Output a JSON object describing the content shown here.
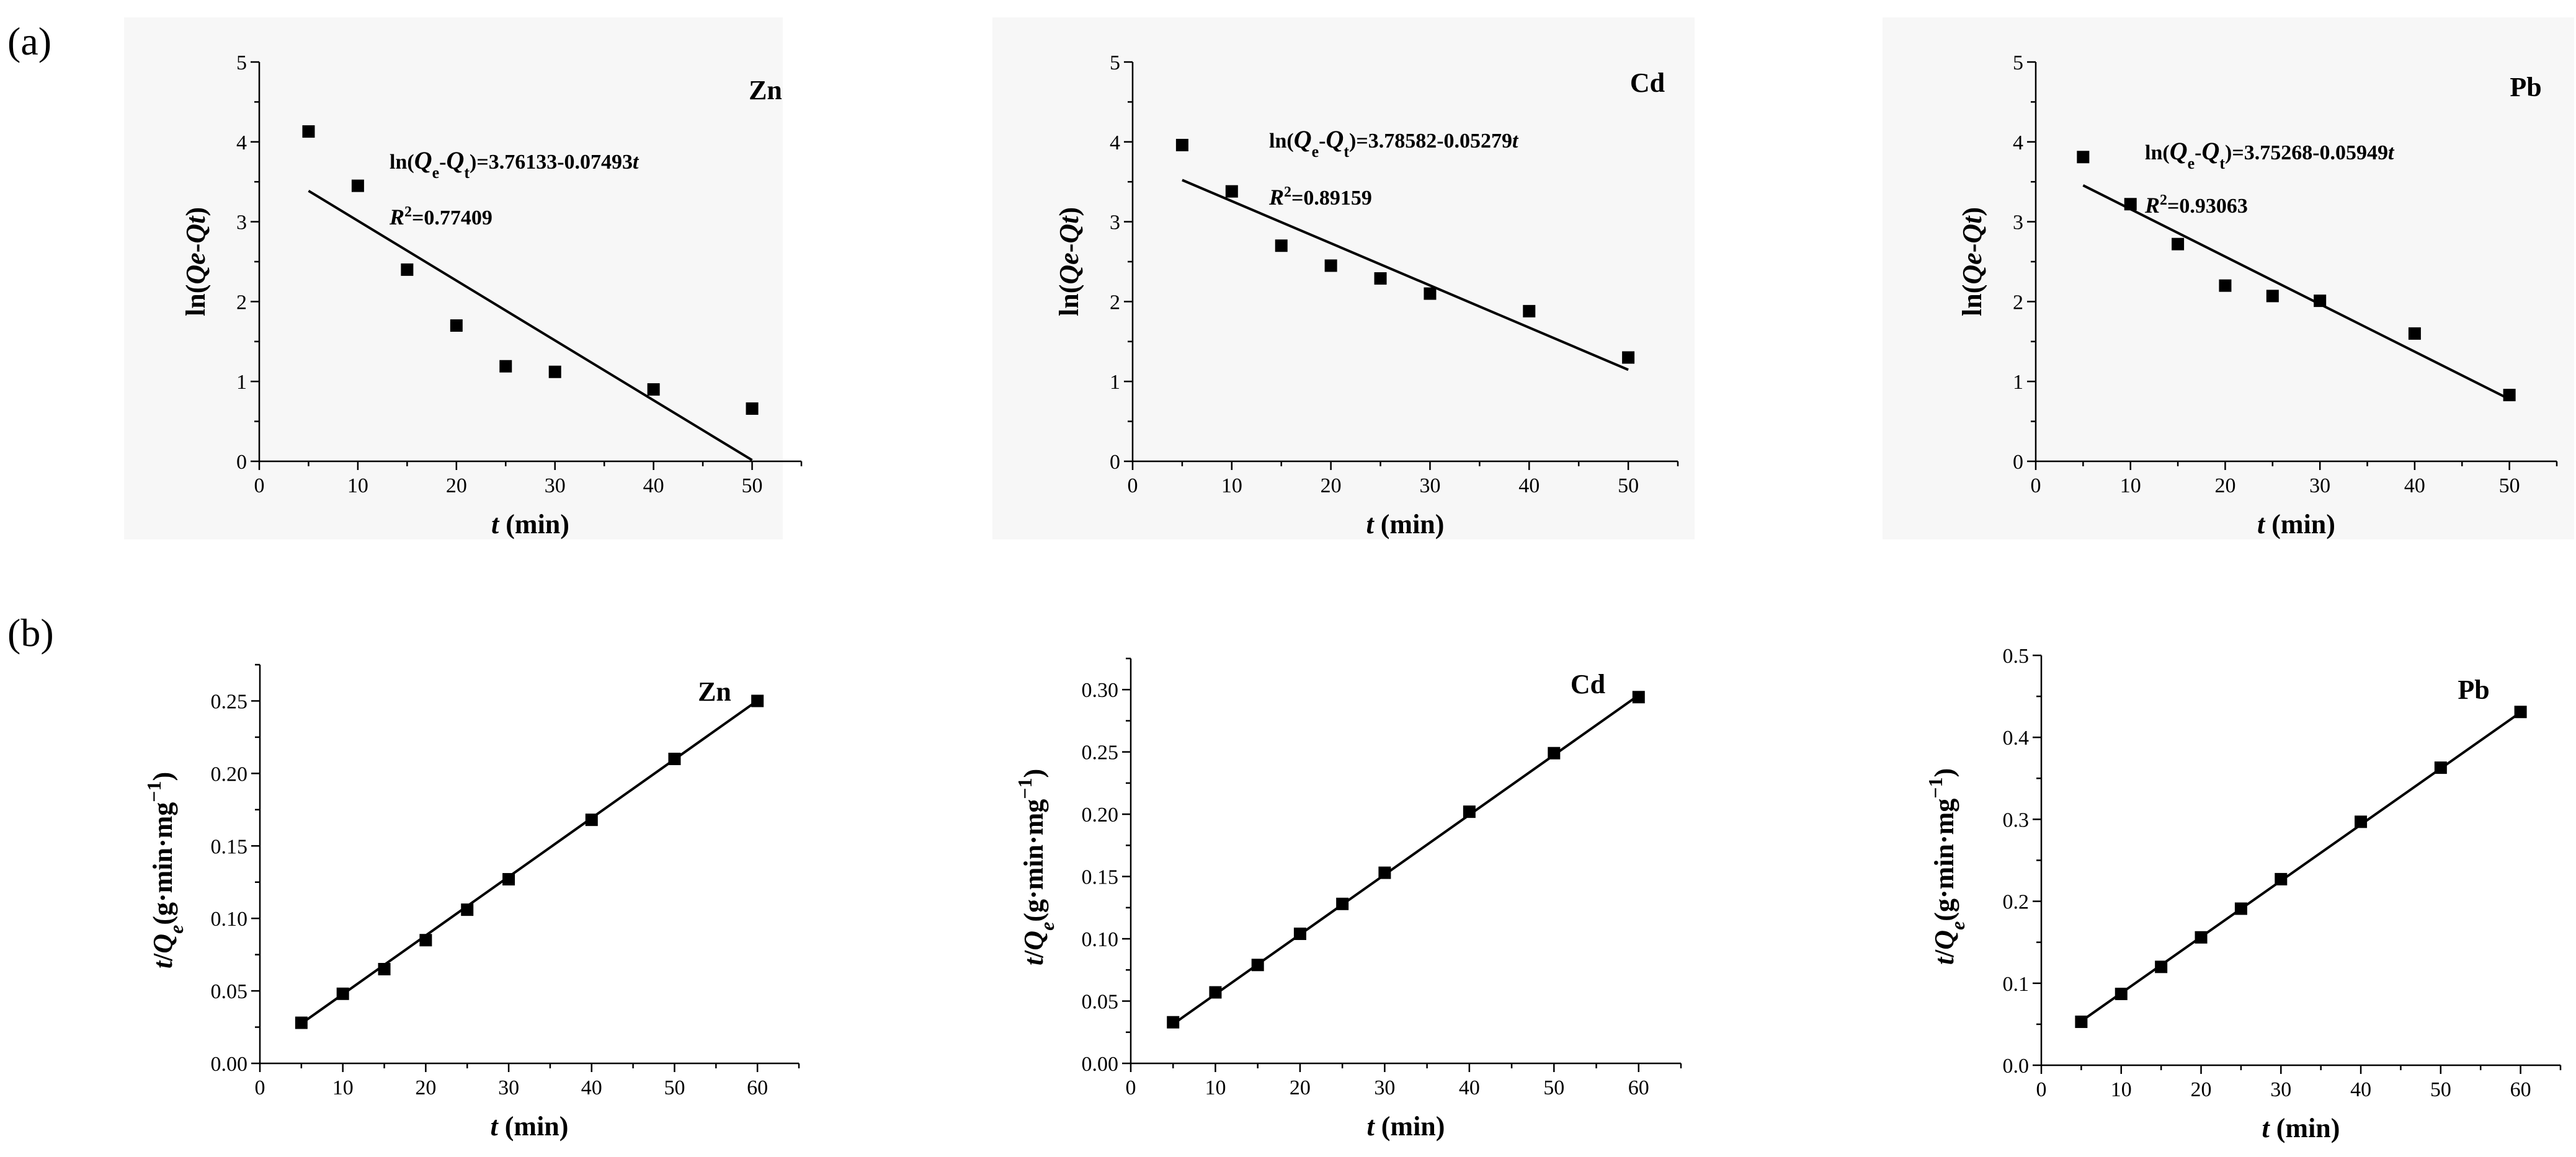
{
  "panel_labels": {
    "a": "(a)",
    "b": "(b)"
  },
  "chart_data": [
    {
      "panel": "a",
      "type": "scatter",
      "title": "Zn",
      "xlabel_italic": "t",
      "xlabel_rest": " (min)",
      "ylabel": "ln(Qe-Qt)",
      "xlim": [
        0,
        55
      ],
      "ylim": [
        0,
        5
      ],
      "xticks": [
        0,
        10,
        20,
        30,
        40,
        50
      ],
      "yticks": [
        0,
        1,
        2,
        3,
        4,
        5
      ],
      "x": [
        5,
        10,
        15,
        20,
        25,
        30,
        40,
        50
      ],
      "y": [
        4.13,
        3.45,
        2.4,
        1.7,
        1.19,
        1.12,
        0.9,
        0.66
      ],
      "fit": {
        "intercept": 3.76133,
        "slope": -0.07493,
        "x_range": [
          5,
          50
        ]
      },
      "equation": "ln(Qe-Qt)=3.76133-0.07493t",
      "r2": "R2=0.77409"
    },
    {
      "panel": "a",
      "type": "scatter",
      "title": "Cd",
      "xlabel_italic": "t",
      "xlabel_rest": " (min)",
      "ylabel": "ln(Qe-Qt)",
      "xlim": [
        0,
        55
      ],
      "ylim": [
        0,
        5
      ],
      "xticks": [
        0,
        10,
        20,
        30,
        40,
        50
      ],
      "yticks": [
        0,
        1,
        2,
        3,
        4,
        5
      ],
      "x": [
        5,
        10,
        15,
        20,
        25,
        30,
        40,
        50
      ],
      "y": [
        3.96,
        3.38,
        2.7,
        2.45,
        2.29,
        2.1,
        1.88,
        1.3
      ],
      "fit": {
        "intercept": 3.78582,
        "slope": -0.05279,
        "x_range": [
          5,
          50
        ]
      },
      "equation": "ln(Qe-Qt)=3.78582-0.05279t",
      "r2": "R2=0.89159"
    },
    {
      "panel": "a",
      "type": "scatter",
      "title": "Pb",
      "xlabel_italic": "t",
      "xlabel_rest": " (min)",
      "ylabel": "ln(Qe-Qt)",
      "xlim": [
        0,
        55
      ],
      "ylim": [
        0,
        5
      ],
      "xticks": [
        0,
        10,
        20,
        30,
        40,
        50
      ],
      "yticks": [
        0,
        1,
        2,
        3,
        4,
        5
      ],
      "x": [
        5,
        10,
        15,
        20,
        25,
        30,
        40,
        50
      ],
      "y": [
        3.81,
        3.22,
        2.72,
        2.2,
        2.07,
        2.01,
        1.6,
        0.83
      ],
      "fit": {
        "intercept": 3.75268,
        "slope": -0.05949,
        "x_range": [
          5,
          50
        ]
      },
      "equation": "ln(Qe-Qt)=3.75268-0.05949t",
      "r2": "R2=0.93063"
    },
    {
      "panel": "b",
      "type": "scatter",
      "title": "Zn",
      "xlabel_italic": "t",
      "xlabel_rest": " (min)",
      "ylabel": "t/Qe(g·min·mg−1)",
      "xlim": [
        0,
        65
      ],
      "ylim": [
        0,
        0.275
      ],
      "xticks": [
        0,
        10,
        20,
        30,
        40,
        50,
        60
      ],
      "yticks": [
        0,
        0.05,
        0.1,
        0.15,
        0.2,
        0.25
      ],
      "ytick_labels": [
        "0.00",
        "0.05",
        "0.10",
        "0.15",
        "0.20",
        "0.25"
      ],
      "x": [
        5,
        10,
        15,
        20,
        25,
        30,
        40,
        50,
        60
      ],
      "y": [
        0.028,
        0.048,
        0.065,
        0.085,
        0.106,
        0.127,
        0.168,
        0.21,
        0.25
      ],
      "fit": {
        "intercept": 0.0072,
        "slope": 0.00405,
        "x_range": [
          5,
          60
        ]
      }
    },
    {
      "panel": "b",
      "type": "scatter",
      "title": "Cd",
      "xlabel_italic": "t",
      "xlabel_rest": " (min)",
      "ylabel": "t/Qe(g·min·mg−1)",
      "xlim": [
        0,
        65
      ],
      "ylim": [
        0,
        0.325
      ],
      "xticks": [
        0,
        10,
        20,
        30,
        40,
        50,
        60
      ],
      "yticks": [
        0,
        0.05,
        0.1,
        0.15,
        0.2,
        0.25,
        0.3
      ],
      "ytick_labels": [
        "0.00",
        "0.05",
        "0.10",
        "0.15",
        "0.20",
        "0.25",
        "0.30"
      ],
      "x": [
        5,
        10,
        15,
        20,
        25,
        30,
        40,
        50,
        60
      ],
      "y": [
        0.033,
        0.057,
        0.079,
        0.104,
        0.128,
        0.153,
        0.202,
        0.249,
        0.294
      ],
      "fit": {
        "intercept": 0.0075,
        "slope": 0.0048,
        "x_range": [
          5,
          60
        ]
      }
    },
    {
      "panel": "b",
      "type": "scatter",
      "title": "Pb",
      "xlabel_italic": "t",
      "xlabel_rest": " (min)",
      "ylabel": "t/Qe(g·min·mg−1)",
      "xlim": [
        0,
        65
      ],
      "ylim": [
        0,
        0.5
      ],
      "xticks": [
        0,
        10,
        20,
        30,
        40,
        50,
        60
      ],
      "yticks": [
        0,
        0.1,
        0.2,
        0.3,
        0.4,
        0.5
      ],
      "ytick_labels": [
        "0.0",
        "0.1",
        "0.2",
        "0.3",
        "0.4",
        "0.5"
      ],
      "x": [
        5,
        10,
        15,
        20,
        25,
        30,
        40,
        50,
        60
      ],
      "y": [
        0.053,
        0.087,
        0.12,
        0.156,
        0.191,
        0.227,
        0.297,
        0.363,
        0.431
      ],
      "fit": {
        "intercept": 0.0195,
        "slope": 0.00685,
        "x_range": [
          5,
          60
        ]
      }
    }
  ]
}
